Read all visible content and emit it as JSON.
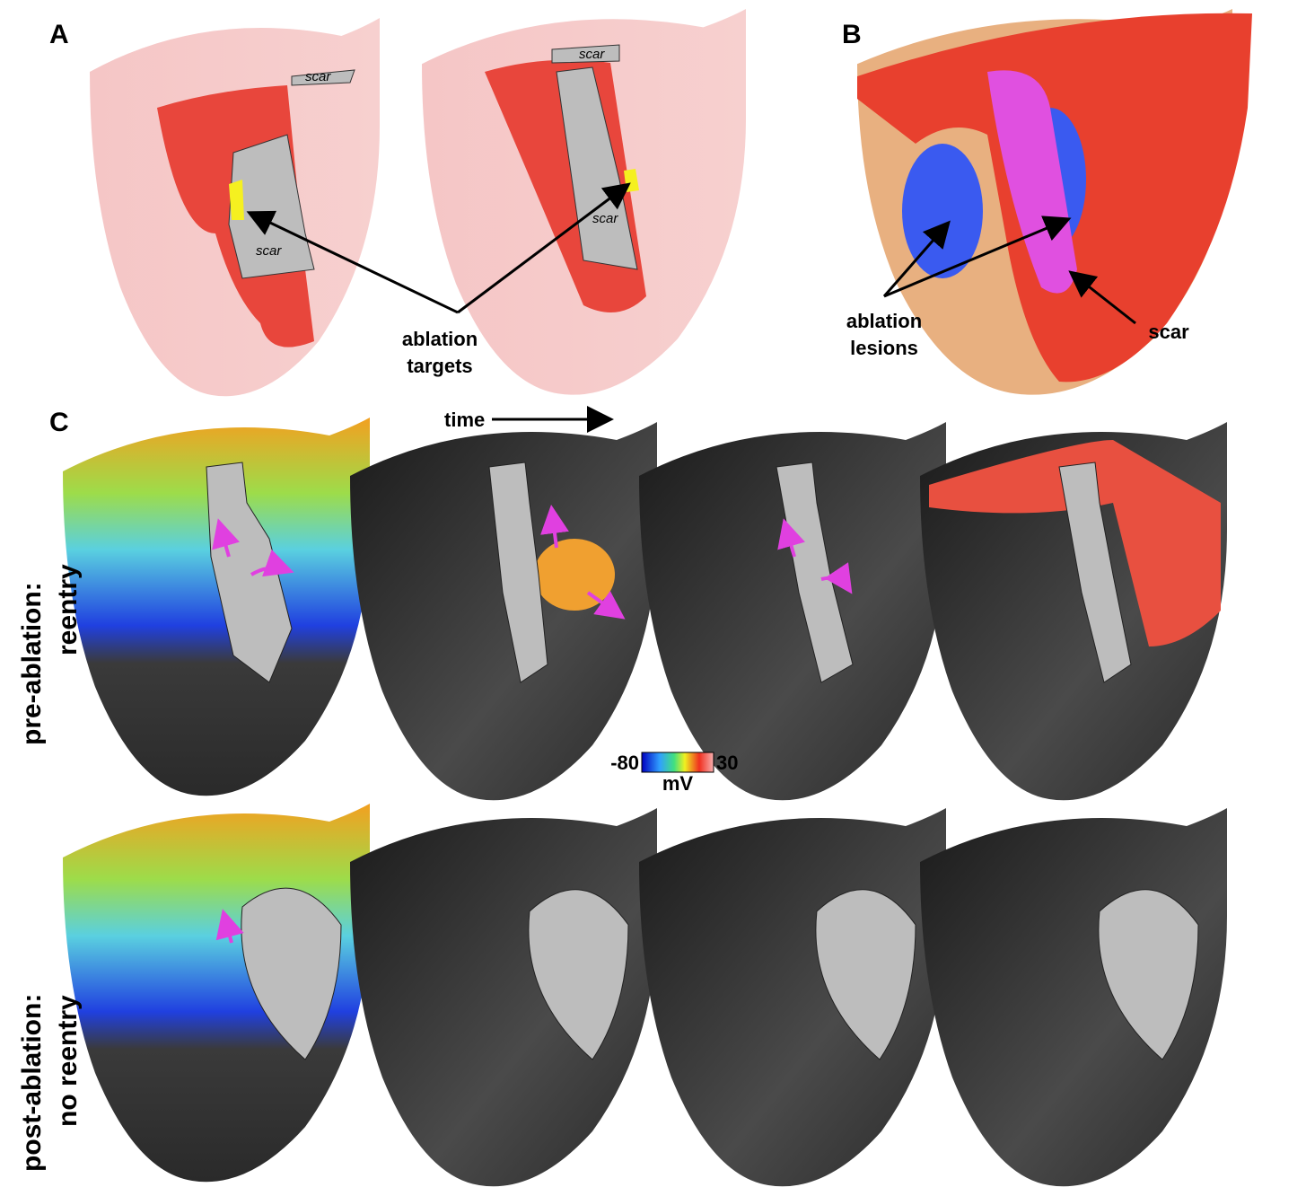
{
  "panel_a": {
    "label": "A",
    "scar_labels": [
      "scar",
      "scar",
      "scar",
      "scar"
    ],
    "annotation": [
      "ablation",
      "targets"
    ]
  },
  "panel_b": {
    "label": "B",
    "annotations": [
      [
        "ablation",
        "lesions"
      ],
      [
        "scar"
      ]
    ]
  },
  "panel_c": {
    "label": "C",
    "time_label": "time",
    "colorbar": {
      "min": -80,
      "max": 30,
      "unit": "mV"
    },
    "rows": [
      {
        "label": [
          "pre-ablation:",
          "reentry"
        ]
      },
      {
        "label": [
          "post-ablation:",
          "no reentry"
        ]
      }
    ]
  }
}
